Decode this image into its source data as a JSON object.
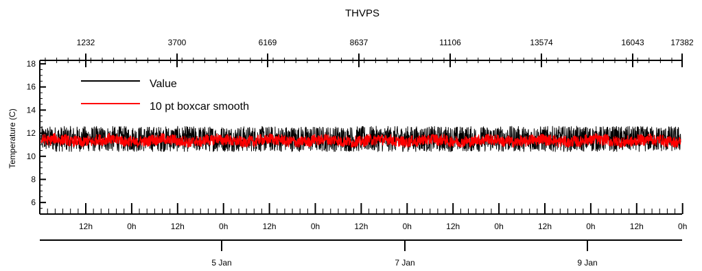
{
  "chart_data": {
    "type": "line",
    "title": "THVPS",
    "ylabel": "Temperature (C)",
    "xlabel": "",
    "ylim": [
      5,
      18.3
    ],
    "y_ticks": [
      6,
      8,
      10,
      12,
      14,
      16,
      18
    ],
    "top_axis": {
      "ticks": [
        "1232",
        "3700",
        "6169",
        "8637",
        "11106",
        "13574",
        "16043",
        "17382"
      ]
    },
    "hour_axis": {
      "labels": [
        "12h",
        "0h",
        "12h",
        "0h",
        "12h",
        "0h",
        "12h",
        "0h",
        "12h",
        "0h",
        "12h",
        "0h",
        "12h",
        "0h"
      ]
    },
    "day_axis": {
      "labels": [
        "5 Jan",
        "7 Jan",
        "9 Jan"
      ]
    },
    "legend_position": "top-left",
    "series": [
      {
        "name": "Value",
        "color": "#000000",
        "band_min": 10.4,
        "band_max": 12.6,
        "center": 11.4
      },
      {
        "name": "10 pt boxcar smooth",
        "color": "#ff0000",
        "band_min": 10.8,
        "band_max": 12.0,
        "center": 11.35
      }
    ]
  }
}
